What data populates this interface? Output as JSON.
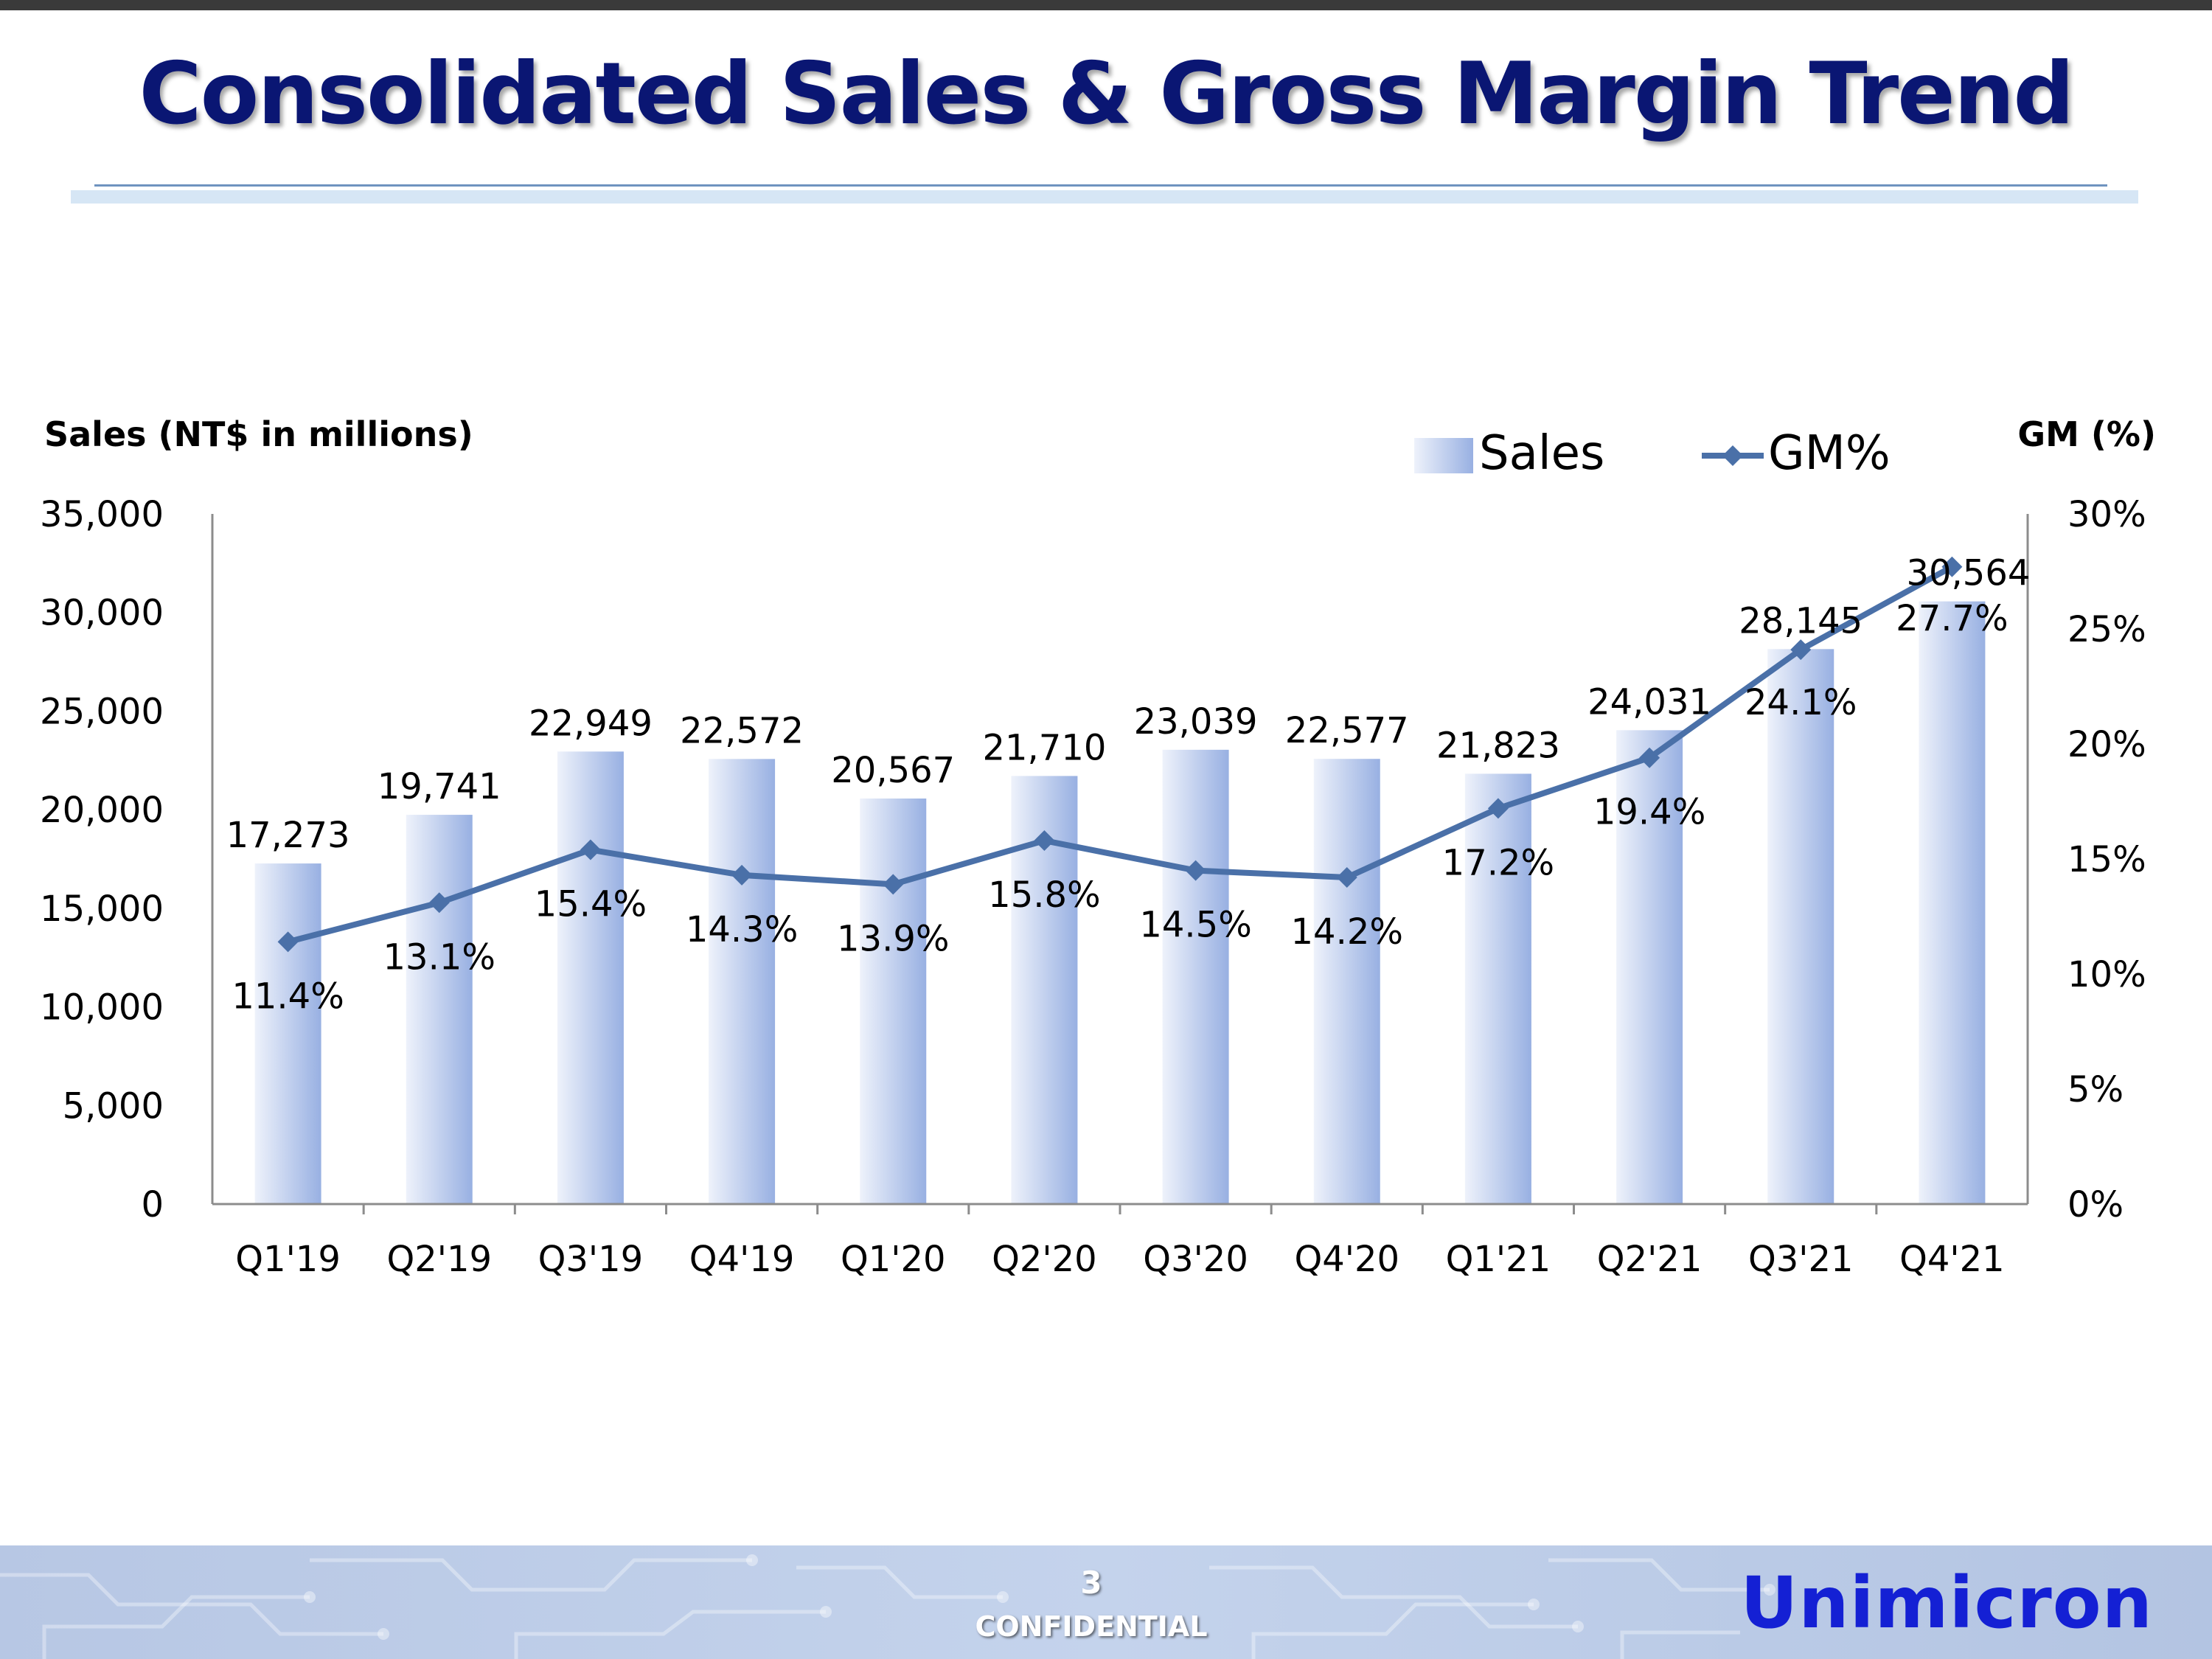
{
  "slide": {
    "title": "Consolidated Sales & Gross Margin Trend",
    "page_number": "3",
    "confidential_label": "CONFIDENTIAL",
    "brand": "Unimicron"
  },
  "colors": {
    "title": "#0a1673",
    "line": "#4a70a8",
    "bar_light": "#e6ecf8",
    "bar_dark": "#9bb3e3",
    "brand": "#1420d4"
  },
  "chart_data": {
    "type": "bar",
    "title": "Consolidated Sales & Gross Margin Trend",
    "categories": [
      "Q1'19",
      "Q2'19",
      "Q3'19",
      "Q4'19",
      "Q1'20",
      "Q2'20",
      "Q3'20",
      "Q4'20",
      "Q1'21",
      "Q2'21",
      "Q3'21",
      "Q4'21"
    ],
    "series": [
      {
        "name": "Sales",
        "type": "bar",
        "axis": "left",
        "values": [
          17273,
          19741,
          22949,
          22572,
          20567,
          21710,
          23039,
          22577,
          21823,
          24031,
          28145,
          30564
        ],
        "labels": [
          "17,273",
          "19,741",
          "22,949",
          "22,572",
          "20,567",
          "21,710",
          "23,039",
          "22,577",
          "21,823",
          "24,031",
          "28,145",
          "30,564"
        ]
      },
      {
        "name": "GM%",
        "type": "line",
        "axis": "right",
        "values": [
          11.4,
          13.1,
          15.4,
          14.3,
          13.9,
          15.8,
          14.5,
          14.2,
          17.2,
          19.4,
          24.1,
          27.7
        ],
        "labels": [
          "11.4%",
          "13.1%",
          "15.4%",
          "14.3%",
          "13.9%",
          "15.8%",
          "14.5%",
          "14.2%",
          "17.2%",
          "19.4%",
          "24.1%",
          "27.7%"
        ]
      }
    ],
    "ylabel": "Sales (NT$ in millions)",
    "y2label": "GM (%)",
    "ylim": [
      0,
      35000
    ],
    "y2lim": [
      0,
      30
    ],
    "yticks": [
      0,
      5000,
      10000,
      15000,
      20000,
      25000,
      30000,
      35000
    ],
    "ytick_labels": [
      "0",
      "5,000",
      "10,000",
      "15,000",
      "20,000",
      "25,000",
      "30,000",
      "35,000"
    ],
    "y2ticks": [
      0,
      5,
      10,
      15,
      20,
      25,
      30
    ],
    "y2tick_labels": [
      "0%",
      "5%",
      "10%",
      "15%",
      "20%",
      "25%",
      "30%"
    ],
    "legend": [
      "Sales",
      "GM%"
    ],
    "legend_position": "top-right",
    "grid": false
  }
}
